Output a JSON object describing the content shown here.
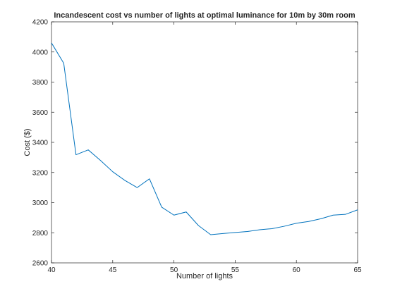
{
  "chart_data": {
    "type": "line",
    "title": "Incandescent cost vs number of lights at optimal luminance for 10m by 30m room",
    "xlabel": "Number of lights",
    "ylabel": "Cost ($)",
    "xlim": [
      40,
      65
    ],
    "ylim": [
      2600,
      4200
    ],
    "xticks": [
      40,
      45,
      50,
      55,
      60,
      65
    ],
    "yticks": [
      2600,
      2800,
      3000,
      3200,
      3400,
      3600,
      3800,
      4000,
      4200
    ],
    "grid": false,
    "series": [
      {
        "name": "Cost",
        "color": "#0072BD",
        "x": [
          40,
          41,
          42,
          43,
          44,
          45,
          46,
          47,
          48,
          49,
          50,
          51,
          52,
          53,
          54,
          55,
          56,
          57,
          58,
          59,
          60,
          61,
          62,
          63,
          64,
          65
        ],
        "y": [
          4060,
          3925,
          3318,
          3350,
          3280,
          3205,
          3147,
          3100,
          3158,
          2970,
          2917,
          2938,
          2848,
          2787,
          2795,
          2802,
          2808,
          2820,
          2827,
          2843,
          2863,
          2875,
          2893,
          2917,
          2922,
          2952
        ]
      }
    ]
  }
}
